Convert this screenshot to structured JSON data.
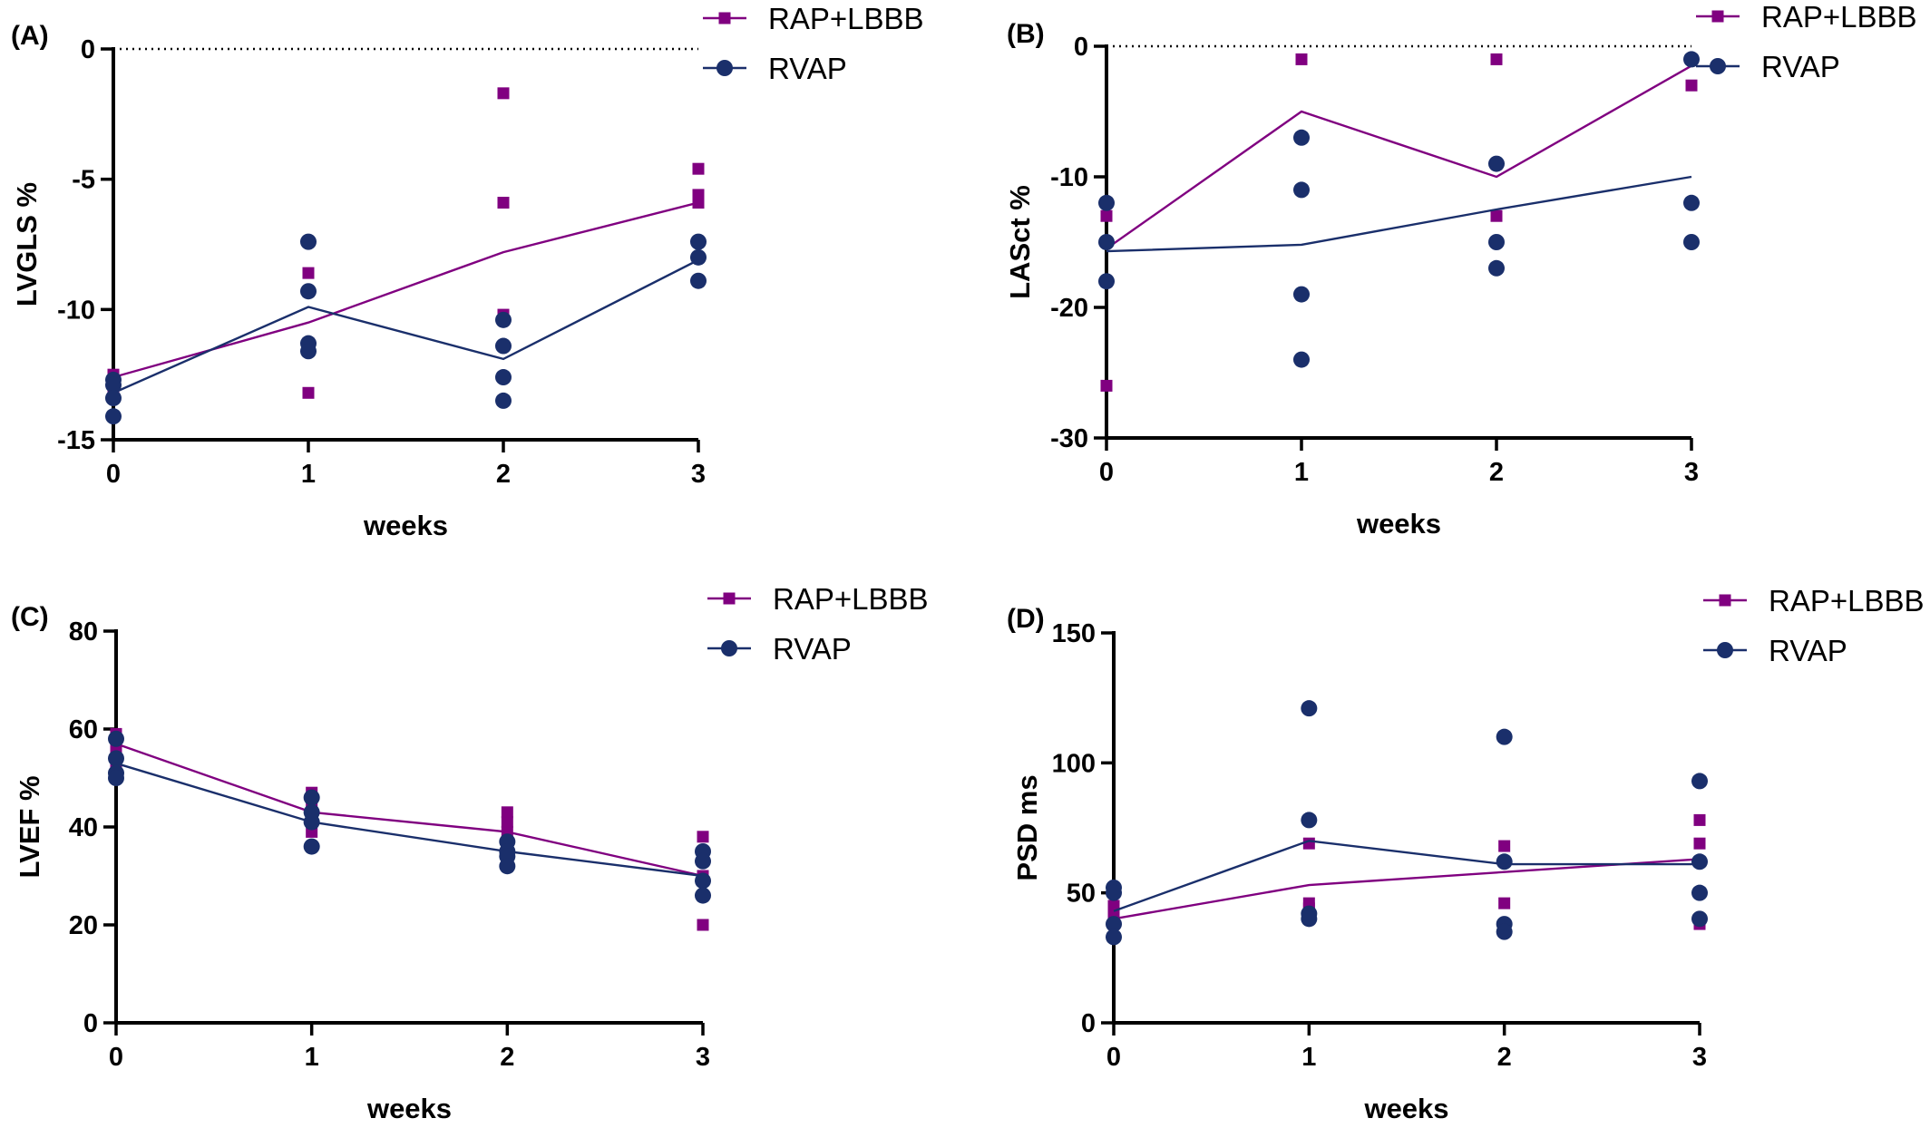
{
  "colors": {
    "rap_lbbb": "#800080",
    "rvap": "#1a2f6b",
    "axis": "#000000"
  },
  "chart_data": [
    {
      "type": "scatter",
      "panel_label": "(A)",
      "xlabel": "weeks",
      "ylabel": "LVGLS %",
      "xlim": [
        0,
        3
      ],
      "ylim": [
        -15,
        0
      ],
      "x_ticks": [
        0,
        1,
        2,
        3
      ],
      "y_ticks": [
        -15,
        -10,
        -5,
        0
      ],
      "reference_line": 0,
      "legend_position": "top-right",
      "series": [
        {
          "name": "RAP+LBBB",
          "color": "#800080",
          "marker": "square",
          "mean": [
            [
              0,
              -12.6
            ],
            [
              1,
              -10.5
            ],
            [
              2,
              -7.8
            ],
            [
              3,
              -5.9
            ]
          ],
          "points": [
            [
              0,
              -12.5
            ],
            [
              0,
              -12.8
            ],
            [
              0,
              -13.1
            ],
            [
              1,
              -8.6
            ],
            [
              1,
              -11.3
            ],
            [
              1,
              -13.2
            ],
            [
              2,
              -1.7
            ],
            [
              2,
              -5.9
            ],
            [
              2,
              -10.2
            ],
            [
              3,
              -4.6
            ],
            [
              3,
              -5.6
            ],
            [
              3,
              -5.9
            ]
          ]
        },
        {
          "name": "RVAP",
          "color": "#1a2f6b",
          "marker": "circle",
          "mean": [
            [
              0,
              -13.2
            ],
            [
              1,
              -9.9
            ],
            [
              2,
              -11.9
            ],
            [
              3,
              -8.1
            ]
          ],
          "points": [
            [
              0,
              -12.7
            ],
            [
              0,
              -12.9
            ],
            [
              0,
              -13.4
            ],
            [
              0,
              -14.1
            ],
            [
              1,
              -7.4
            ],
            [
              1,
              -9.3
            ],
            [
              1,
              -11.3
            ],
            [
              1,
              -11.6
            ],
            [
              2,
              -10.4
            ],
            [
              2,
              -11.4
            ],
            [
              2,
              -12.6
            ],
            [
              2,
              -13.5
            ],
            [
              3,
              -7.4
            ],
            [
              3,
              -8.0
            ],
            [
              3,
              -8.9
            ]
          ]
        }
      ]
    },
    {
      "type": "scatter",
      "panel_label": "(B)",
      "xlabel": "weeks",
      "ylabel": "LASct %",
      "xlim": [
        0,
        3
      ],
      "ylim": [
        -30,
        0
      ],
      "x_ticks": [
        0,
        1,
        2,
        3
      ],
      "y_ticks": [
        -30,
        -20,
        -10,
        0
      ],
      "reference_line": 0,
      "legend_position": "top-right",
      "series": [
        {
          "name": "RAP+LBBB",
          "color": "#800080",
          "marker": "square",
          "mean": [
            [
              0,
              -15.5
            ],
            [
              1,
              -5.0
            ],
            [
              2,
              -10.0
            ],
            [
              3,
              -1.5
            ]
          ],
          "points": [
            [
              0,
              -13
            ],
            [
              0,
              -26
            ],
            [
              1,
              -1
            ],
            [
              2,
              -1
            ],
            [
              2,
              -13
            ],
            [
              3,
              -3
            ]
          ]
        },
        {
          "name": "RVAP",
          "color": "#1a2f6b",
          "marker": "circle",
          "mean": [
            [
              0,
              -15.7
            ],
            [
              1,
              -15.2
            ],
            [
              2,
              -12.5
            ],
            [
              3,
              -10.0
            ]
          ],
          "points": [
            [
              0,
              -12
            ],
            [
              0,
              -15
            ],
            [
              0,
              -18
            ],
            [
              1,
              -7
            ],
            [
              1,
              -11
            ],
            [
              1,
              -19
            ],
            [
              1,
              -24
            ],
            [
              2,
              -9
            ],
            [
              2,
              -15
            ],
            [
              2,
              -17
            ],
            [
              3,
              -1
            ],
            [
              3,
              -12
            ],
            [
              3,
              -15
            ]
          ]
        }
      ]
    },
    {
      "type": "scatter",
      "panel_label": "(C)",
      "xlabel": "weeks",
      "ylabel": "LVEF %",
      "xlim": [
        0,
        3
      ],
      "ylim": [
        0,
        80
      ],
      "x_ticks": [
        0,
        1,
        2,
        3
      ],
      "y_ticks": [
        0,
        20,
        40,
        60,
        80
      ],
      "legend_position": "top-right",
      "series": [
        {
          "name": "RAP+LBBB",
          "color": "#800080",
          "marker": "square",
          "mean": [
            [
              0,
              57
            ],
            [
              1,
              43
            ],
            [
              2,
              39
            ],
            [
              3,
              30
            ]
          ],
          "points": [
            [
              0,
              59
            ],
            [
              0,
              56
            ],
            [
              0,
              53
            ],
            [
              1,
              47
            ],
            [
              1,
              44
            ],
            [
              1,
              39
            ],
            [
              2,
              43
            ],
            [
              2,
              41
            ],
            [
              2,
              39
            ],
            [
              3,
              38
            ],
            [
              3,
              30
            ],
            [
              3,
              20
            ]
          ]
        },
        {
          "name": "RVAP",
          "color": "#1a2f6b",
          "marker": "circle",
          "mean": [
            [
              0,
              53
            ],
            [
              1,
              41
            ],
            [
              2,
              35
            ],
            [
              3,
              30
            ]
          ],
          "points": [
            [
              0,
              58
            ],
            [
              0,
              54
            ],
            [
              0,
              51
            ],
            [
              0,
              50
            ],
            [
              1,
              46
            ],
            [
              1,
              43
            ],
            [
              1,
              41
            ],
            [
              1,
              36
            ],
            [
              2,
              37
            ],
            [
              2,
              35
            ],
            [
              2,
              34
            ],
            [
              2,
              32
            ],
            [
              3,
              35
            ],
            [
              3,
              33
            ],
            [
              3,
              29
            ],
            [
              3,
              26
            ]
          ]
        }
      ]
    },
    {
      "type": "scatter",
      "panel_label": "(D)",
      "xlabel": "weeks",
      "ylabel": "PSD ms",
      "xlim": [
        0,
        3
      ],
      "ylim": [
        0,
        150
      ],
      "x_ticks": [
        0,
        1,
        2,
        3
      ],
      "y_ticks": [
        0,
        50,
        100,
        150
      ],
      "legend_position": "top-right",
      "series": [
        {
          "name": "RAP+LBBB",
          "color": "#800080",
          "marker": "square",
          "mean": [
            [
              0,
              40
            ],
            [
              1,
              53
            ],
            [
              2,
              58
            ],
            [
              3,
              63
            ]
          ],
          "points": [
            [
              0,
              45
            ],
            [
              0,
              42
            ],
            [
              0,
              38
            ],
            [
              1,
              69
            ],
            [
              1,
              46
            ],
            [
              1,
              44
            ],
            [
              2,
              68
            ],
            [
              2,
              46
            ],
            [
              2,
              37
            ],
            [
              3,
              78
            ],
            [
              3,
              69
            ],
            [
              3,
              38
            ]
          ]
        },
        {
          "name": "RVAP",
          "color": "#1a2f6b",
          "marker": "circle",
          "mean": [
            [
              0,
              43
            ],
            [
              1,
              70
            ],
            [
              2,
              61
            ],
            [
              3,
              61
            ]
          ],
          "points": [
            [
              0,
              52
            ],
            [
              0,
              50
            ],
            [
              0,
              38
            ],
            [
              0,
              33
            ],
            [
              1,
              121
            ],
            [
              1,
              78
            ],
            [
              1,
              42
            ],
            [
              1,
              40
            ],
            [
              2,
              110
            ],
            [
              2,
              62
            ],
            [
              2,
              38
            ],
            [
              2,
              35
            ],
            [
              3,
              93
            ],
            [
              3,
              62
            ],
            [
              3,
              50
            ],
            [
              3,
              40
            ]
          ]
        }
      ]
    }
  ]
}
